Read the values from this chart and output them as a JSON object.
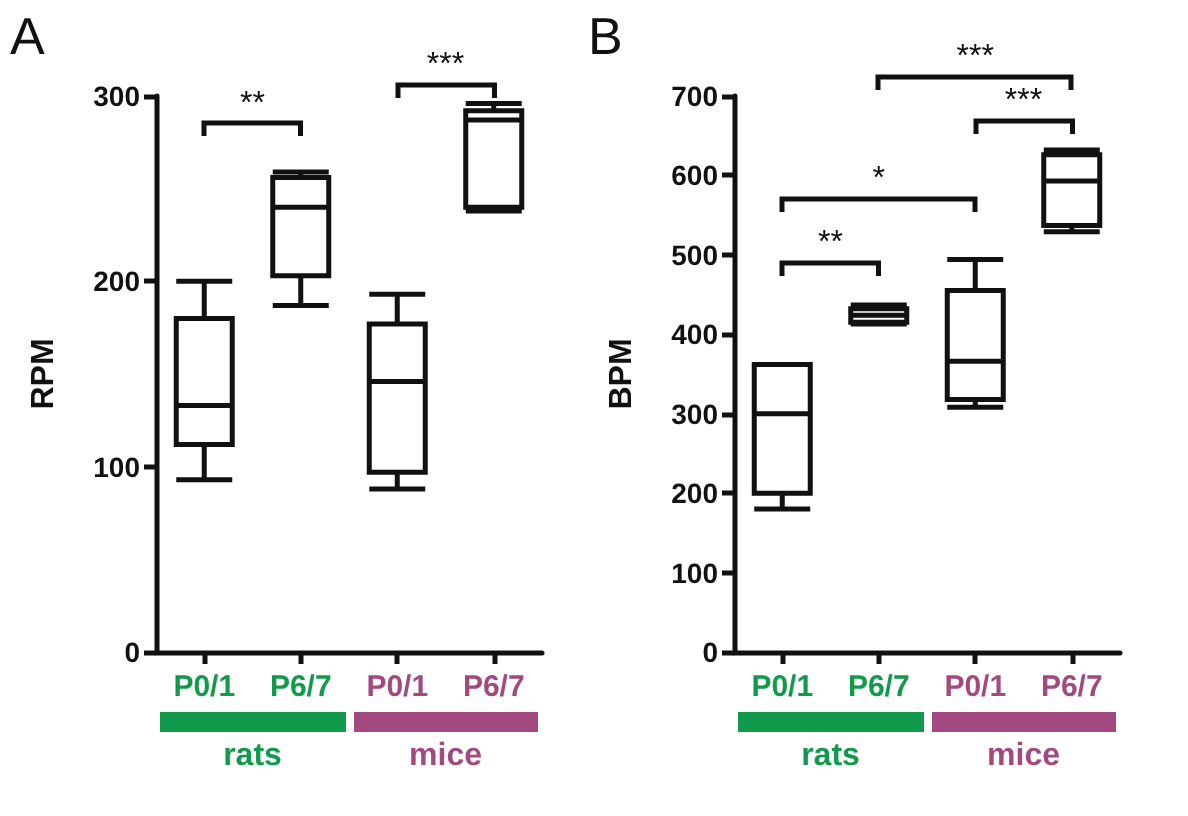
{
  "chart_data": [
    {
      "type": "box",
      "title": "A",
      "ylabel": "RPM",
      "categories": [
        "P0/1",
        "P6/7",
        "P0/1",
        "P6/7"
      ],
      "ylim": [
        0,
        300
      ],
      "yticks": [
        0,
        100,
        200,
        300
      ],
      "grid": false,
      "boxes": [
        {
          "low": 93,
          "q1": 112,
          "median": 133,
          "q3": 180,
          "high": 200
        },
        {
          "low": 187,
          "q1": 203,
          "median": 240,
          "q3": 256,
          "high": 259
        },
        {
          "low": 88,
          "q1": 97,
          "median": 146,
          "q3": 177,
          "high": 193
        },
        {
          "low": 238,
          "q1": 240,
          "median": 287,
          "q3": 292,
          "high": 296
        }
      ],
      "annotations": [
        "rats",
        "mice",
        "**",
        "***"
      ]
    },
    {
      "type": "box",
      "title": "B",
      "ylabel": "BPM",
      "categories": [
        "P0/1",
        "P6/7",
        "P0/1",
        "P6/7"
      ],
      "ylim": [
        0,
        700
      ],
      "yticks": [
        0,
        100,
        200,
        300,
        400,
        500,
        600,
        700
      ],
      "grid": false,
      "boxes": [
        {
          "low": 180,
          "q1": 200,
          "median": 300,
          "q3": 362,
          "high": 362
        },
        {
          "low": 413,
          "q1": 415,
          "median": 424,
          "q3": 432,
          "high": 437
        },
        {
          "low": 308,
          "q1": 318,
          "median": 366,
          "q3": 455,
          "high": 494
        },
        {
          "low": 529,
          "q1": 537,
          "median": 593,
          "q3": 626,
          "high": 632
        }
      ],
      "annotations": [
        "rats",
        "mice",
        "**",
        "*",
        "***",
        "***"
      ]
    }
  ]
}
